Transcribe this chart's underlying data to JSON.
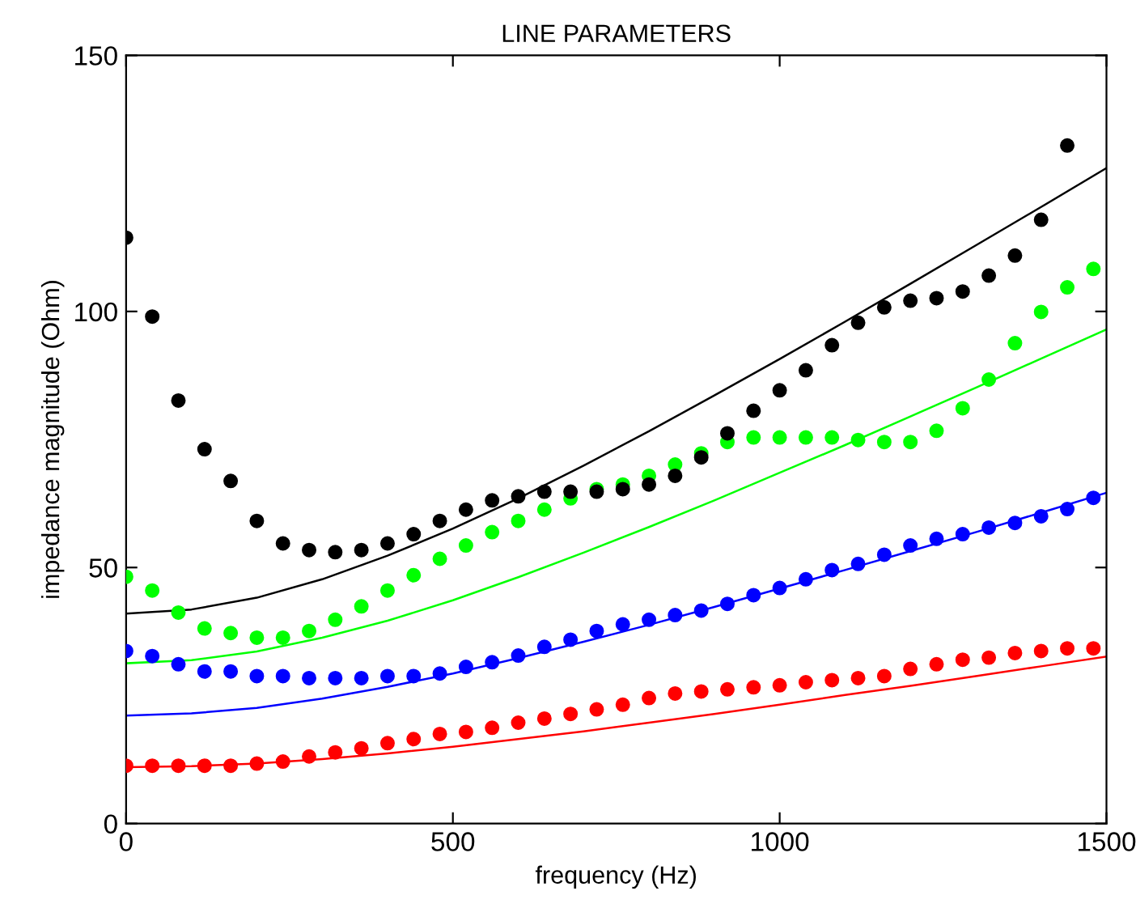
{
  "chart_data": {
    "type": "scatter",
    "title": "LINE PARAMETERS",
    "xlabel": "frequency (Hz)",
    "ylabel": "impedance magnitude (Ohm)",
    "xlim": [
      0,
      1500
    ],
    "xticks": [
      0,
      500,
      1000,
      1500
    ],
    "ylim": [
      0,
      150
    ],
    "yticks": [
      0,
      50,
      100,
      150
    ],
    "grid": false,
    "legend": false,
    "series": [
      {
        "marker": "circle",
        "color": "#000000",
        "x": [
          0,
          40,
          80,
          120,
          160,
          200,
          240,
          280,
          320,
          360,
          400,
          440,
          480,
          520,
          560,
          600,
          640,
          680,
          720,
          760,
          800,
          840,
          880,
          920,
          960,
          1000,
          1040,
          1080,
          1120,
          1160,
          1200,
          1240,
          1280,
          1320,
          1360,
          1400,
          1440
        ],
        "values": [
          114.4,
          99.0,
          82.6,
          73.1,
          66.9,
          59.1,
          54.7,
          53.4,
          53.0,
          53.4,
          54.7,
          56.5,
          59.1,
          61.3,
          63.1,
          63.9,
          64.8,
          64.8,
          64.8,
          65.3,
          66.2,
          67.9,
          71.5,
          76.2,
          80.6,
          84.6,
          88.5,
          93.4,
          97.8,
          100.8,
          102.1,
          102.6,
          103.9,
          107.0,
          110.9,
          117.9,
          132.4
        ]
      },
      {
        "marker": "circle",
        "color": "#00ff00",
        "x": [
          0,
          40,
          80,
          120,
          160,
          200,
          240,
          280,
          320,
          360,
          400,
          440,
          480,
          520,
          560,
          600,
          640,
          680,
          720,
          760,
          800,
          840,
          880,
          920,
          960,
          1000,
          1040,
          1080,
          1120,
          1160,
          1200,
          1240,
          1280,
          1320,
          1360,
          1400,
          1440,
          1480
        ],
        "values": [
          48.2,
          45.5,
          41.2,
          38.1,
          37.2,
          36.3,
          36.3,
          37.6,
          39.8,
          42.4,
          45.5,
          48.5,
          51.7,
          54.3,
          56.9,
          59.1,
          61.3,
          63.5,
          65.3,
          66.2,
          67.9,
          70.1,
          72.3,
          74.5,
          75.4,
          75.4,
          75.4,
          75.4,
          74.9,
          74.5,
          74.5,
          76.7,
          81.1,
          86.7,
          93.8,
          99.9,
          104.7,
          108.3
        ]
      },
      {
        "marker": "circle",
        "color": "#0000ff",
        "x": [
          0,
          40,
          80,
          120,
          160,
          200,
          240,
          280,
          320,
          360,
          400,
          440,
          480,
          520,
          560,
          600,
          640,
          680,
          720,
          760,
          800,
          840,
          880,
          920,
          960,
          1000,
          1040,
          1080,
          1120,
          1160,
          1200,
          1240,
          1280,
          1320,
          1360,
          1400,
          1440,
          1480
        ],
        "values": [
          33.7,
          32.7,
          31.1,
          29.7,
          29.7,
          28.8,
          28.8,
          28.4,
          28.4,
          28.4,
          28.8,
          28.8,
          29.3,
          30.6,
          31.5,
          32.8,
          34.5,
          35.9,
          37.6,
          38.9,
          39.8,
          40.7,
          41.6,
          42.9,
          44.6,
          46.0,
          47.7,
          49.5,
          50.7,
          52.5,
          54.3,
          55.6,
          56.5,
          57.8,
          58.7,
          60.0,
          61.4,
          63.6
        ]
      },
      {
        "marker": "circle",
        "color": "#ff0000",
        "x": [
          0,
          40,
          80,
          120,
          160,
          200,
          240,
          280,
          320,
          360,
          400,
          440,
          480,
          520,
          560,
          600,
          640,
          680,
          720,
          760,
          800,
          840,
          880,
          920,
          960,
          1000,
          1040,
          1080,
          1120,
          1160,
          1200,
          1240,
          1280,
          1320,
          1360,
          1400,
          1440,
          1480
        ],
        "values": [
          11.3,
          11.3,
          11.3,
          11.3,
          11.3,
          11.7,
          12.1,
          13.1,
          13.9,
          14.7,
          15.7,
          16.5,
          17.5,
          17.9,
          18.7,
          19.7,
          20.5,
          21.4,
          22.3,
          23.2,
          24.5,
          25.4,
          25.8,
          26.2,
          26.6,
          27.0,
          27.6,
          28.0,
          28.4,
          28.8,
          30.2,
          31.1,
          32.0,
          32.4,
          33.3,
          33.7,
          34.2,
          34.2
        ]
      },
      {
        "type": "line",
        "marker": "none",
        "line_style": "solid",
        "color": "#000000",
        "x": [
          0,
          100,
          200,
          300,
          400,
          500,
          600,
          700,
          800,
          900,
          1000,
          1100,
          1200,
          1300,
          1400,
          1500
        ],
        "values": [
          41.0,
          41.8,
          44.1,
          47.7,
          52.3,
          57.6,
          63.5,
          69.9,
          76.6,
          83.6,
          90.7,
          98.0,
          105.4,
          112.9,
          120.4,
          128.0
        ]
      },
      {
        "type": "line",
        "marker": "none",
        "line_style": "solid",
        "color": "#00ff00",
        "x": [
          0,
          100,
          200,
          300,
          400,
          500,
          600,
          700,
          800,
          900,
          1000,
          1100,
          1200,
          1300,
          1400,
          1500
        ],
        "values": [
          31.3,
          31.9,
          33.6,
          36.3,
          39.6,
          43.6,
          48.1,
          52.9,
          57.9,
          63.1,
          68.5,
          73.9,
          79.5,
          85.1,
          90.8,
          96.5
        ]
      },
      {
        "type": "line",
        "marker": "none",
        "line_style": "solid",
        "color": "#0000ff",
        "x": [
          0,
          100,
          200,
          300,
          400,
          500,
          600,
          700,
          800,
          900,
          1000,
          1100,
          1200,
          1300,
          1400,
          1500
        ],
        "values": [
          21.1,
          21.5,
          22.6,
          24.4,
          26.7,
          29.3,
          32.3,
          35.5,
          38.8,
          42.3,
          45.9,
          49.5,
          53.2,
          56.9,
          60.7,
          64.6
        ]
      },
      {
        "type": "line",
        "marker": "none",
        "line_style": "solid",
        "color": "#ff0000",
        "x": [
          0,
          100,
          200,
          300,
          400,
          500,
          600,
          700,
          800,
          900,
          1000,
          1100,
          1200,
          1300,
          1400,
          1500
        ],
        "values": [
          11.0,
          11.2,
          11.7,
          12.6,
          13.7,
          15.0,
          16.5,
          18.0,
          19.7,
          21.4,
          23.2,
          25.1,
          26.9,
          28.8,
          30.7,
          32.6
        ]
      }
    ]
  }
}
